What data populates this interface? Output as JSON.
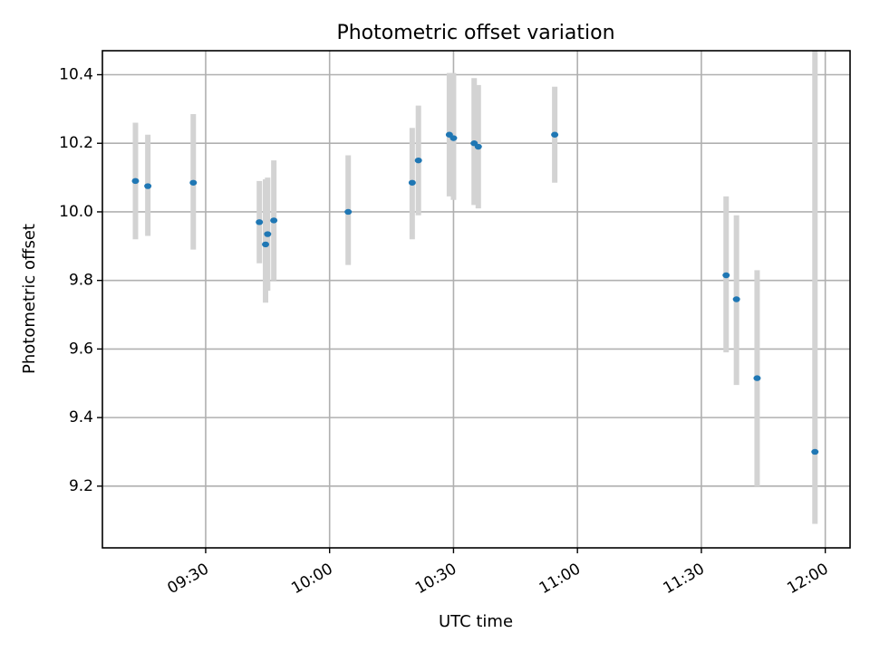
{
  "chart_data": {
    "type": "scatter",
    "title": "Photometric offset variation",
    "xlabel": "UTC time",
    "ylabel": "Photometric offset",
    "x_tick_labels": [
      "09:30",
      "10:00",
      "10:30",
      "11:00",
      "11:30",
      "12:00"
    ],
    "x_ticks": [
      "09:30",
      "10:00",
      "10:30",
      "11:00",
      "11:30",
      "12:00"
    ],
    "y_tick_labels": [
      "9.2",
      "9.4",
      "9.6",
      "9.8",
      "10.0",
      "10.2",
      "10.4"
    ],
    "y_ticks": [
      9.2,
      9.4,
      9.6,
      9.8,
      10.0,
      10.2,
      10.4
    ],
    "xlim": [
      "09:05",
      "12:06"
    ],
    "ylim": [
      9.02,
      10.47
    ],
    "grid": true,
    "marker_color": "#1f77b4",
    "errorbar_color": "#d3d3d3",
    "series": [
      {
        "points": [
          {
            "x": "09:13",
            "y": 10.09,
            "low": 9.92,
            "high": 10.26
          },
          {
            "x": "09:16",
            "y": 10.075,
            "low": 9.93,
            "high": 10.225
          },
          {
            "x": "09:27",
            "y": 10.085,
            "low": 9.89,
            "high": 10.285
          },
          {
            "x": "09:43",
            "y": 9.97,
            "low": 9.85,
            "high": 10.09
          },
          {
            "x": "09:44.5",
            "y": 9.905,
            "low": 9.735,
            "high": 10.095
          },
          {
            "x": "09:45",
            "y": 9.935,
            "low": 9.77,
            "high": 10.1
          },
          {
            "x": "09:46.5",
            "y": 9.975,
            "low": 9.8,
            "high": 10.15
          },
          {
            "x": "10:04.5",
            "y": 10.0,
            "low": 9.845,
            "high": 10.165
          },
          {
            "x": "10:20",
            "y": 10.085,
            "low": 9.92,
            "high": 10.245
          },
          {
            "x": "10:21.5",
            "y": 10.15,
            "low": 9.99,
            "high": 10.31
          },
          {
            "x": "10:29",
            "y": 10.225,
            "low": 10.045,
            "high": 10.405
          },
          {
            "x": "10:30",
            "y": 10.215,
            "low": 10.035,
            "high": 10.405
          },
          {
            "x": "10:35",
            "y": 10.2,
            "low": 10.02,
            "high": 10.39
          },
          {
            "x": "10:36",
            "y": 10.19,
            "low": 10.01,
            "high": 10.37
          },
          {
            "x": "10:54.5",
            "y": 10.225,
            "low": 10.085,
            "high": 10.365
          },
          {
            "x": "11:36",
            "y": 9.815,
            "low": 9.59,
            "high": 10.045
          },
          {
            "x": "11:38.5",
            "y": 9.745,
            "low": 9.495,
            "high": 9.99
          },
          {
            "x": "11:43.5",
            "y": 9.515,
            "low": 9.2,
            "high": 9.83
          },
          {
            "x": "11:57.5",
            "y": 9.3,
            "low": 9.09,
            "high": 10.505
          }
        ]
      }
    ]
  }
}
